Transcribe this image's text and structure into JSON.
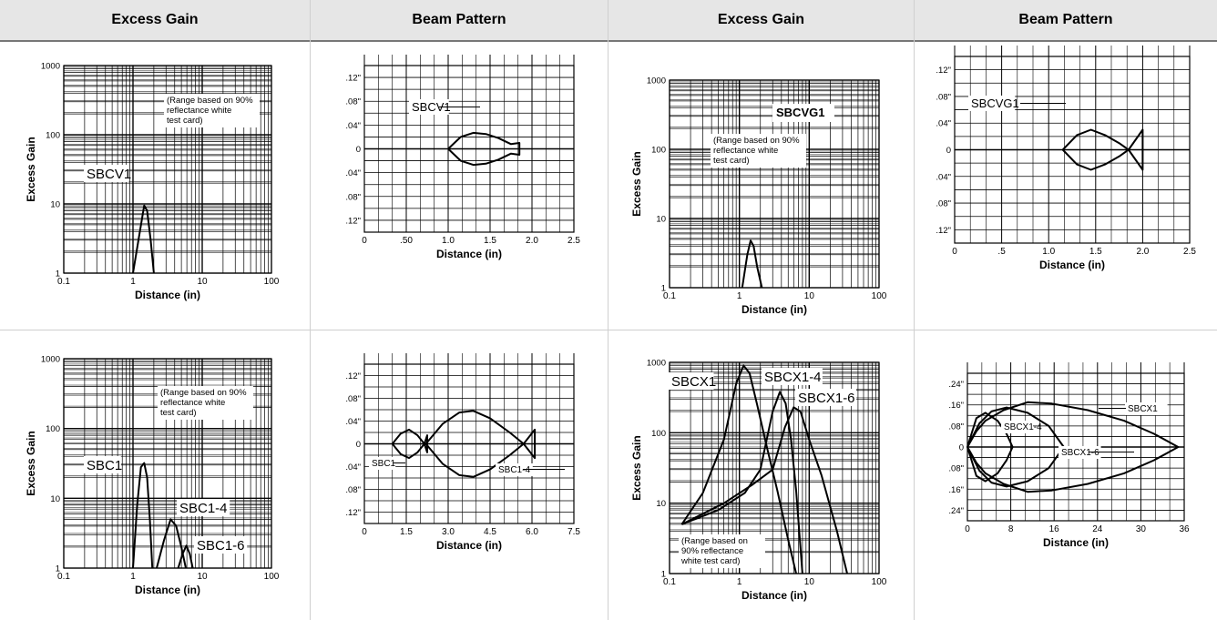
{
  "headers": [
    "Excess Gain",
    "Beam Pattern",
    "Excess Gain",
    "Beam Pattern"
  ],
  "chart_data": [
    {
      "id": "eg-sbcv1",
      "type": "line",
      "xscale": "log",
      "yscale": "log",
      "xlim": [
        0.1,
        100
      ],
      "ylim": [
        1,
        1000
      ],
      "xticks": [
        "0.1",
        "1",
        "10",
        "100"
      ],
      "yticks": [
        "1",
        "10",
        "100",
        "1000"
      ],
      "xlabel": "Distance (in)",
      "ylabel": "Excess Gain",
      "grid": true,
      "note": [
        "(Range based on 90%",
        "reflectance white",
        "test card)"
      ],
      "series": [
        {
          "name": "SBCV1",
          "x": [
            1.0,
            1.2,
            1.45,
            1.6,
            1.8,
            2.0
          ],
          "y": [
            1,
            3,
            9.5,
            8,
            3,
            1
          ]
        }
      ]
    },
    {
      "id": "bp-sbcv1",
      "type": "line",
      "xlim": [
        0,
        2.5
      ],
      "ylim": [
        -0.14,
        0.14
      ],
      "xticks": [
        "0",
        ".50",
        "1.0",
        "1.5",
        "2.0",
        "2.5"
      ],
      "yticks": [
        ".12\"",
        ".08\"",
        ".04\"",
        "0",
        ".04\"",
        ".08\"",
        ".12\""
      ],
      "xlabel": "Distance (in)",
      "grid": true,
      "series": [
        {
          "name": "SBCV1",
          "x": [
            1.0,
            1.15,
            1.3,
            1.45,
            1.6,
            1.75,
            1.85,
            1.85,
            1.75,
            1.6,
            1.45,
            1.3,
            1.15,
            1.0
          ],
          "y": [
            0,
            0.02,
            0.027,
            0.025,
            0.018,
            0.008,
            0.01,
            -0.01,
            -0.008,
            -0.018,
            -0.025,
            -0.027,
            -0.02,
            0
          ]
        }
      ]
    },
    {
      "id": "eg-sbcvg1",
      "type": "line",
      "xscale": "log",
      "yscale": "log",
      "xlim": [
        0.1,
        100
      ],
      "ylim": [
        1,
        1000
      ],
      "xticks": [
        "0.1",
        "1",
        "10",
        "100"
      ],
      "yticks": [
        "1",
        "10",
        "100",
        "1000"
      ],
      "xlabel": "Distance (in)",
      "ylabel": "Excess Gain",
      "grid": true,
      "title": "SBCVG1",
      "note": [
        "(Range based on 90%",
        "reflectance white",
        "test card)"
      ],
      "series": [
        {
          "name": "SBCVG1",
          "x": [
            1.1,
            1.3,
            1.45,
            1.6,
            1.8,
            2.1
          ],
          "y": [
            1,
            3,
            4.8,
            4,
            2,
            1
          ]
        }
      ]
    },
    {
      "id": "bp-sbcvg1",
      "type": "line",
      "xlim": [
        0,
        2.5
      ],
      "ylim": [
        -0.14,
        0.14
      ],
      "xticks": [
        "0",
        ".5",
        "1.0",
        "1.5",
        "2.0",
        "2.5"
      ],
      "yticks": [
        ".12\"",
        ".08\"",
        ".04\"",
        "0",
        ".04\"",
        ".08\"",
        ".12\""
      ],
      "xlabel": "Distance (in)",
      "grid": true,
      "series": [
        {
          "name": "SBCVG1",
          "x": [
            1.15,
            1.3,
            1.45,
            1.6,
            1.75,
            1.85,
            2.0,
            2.0,
            1.85,
            1.75,
            1.6,
            1.45,
            1.3,
            1.15
          ],
          "y": [
            0,
            0.022,
            0.03,
            0.022,
            0.01,
            0,
            0.03,
            -0.03,
            0,
            -0.01,
            -0.022,
            -0.03,
            -0.022,
            0
          ]
        }
      ]
    },
    {
      "id": "eg-sbc1",
      "type": "line",
      "xscale": "log",
      "yscale": "log",
      "xlim": [
        0.1,
        100
      ],
      "ylim": [
        1,
        1000
      ],
      "xticks": [
        "0.1",
        "1",
        "10",
        "100"
      ],
      "yticks": [
        "1",
        "10",
        "100",
        "1000"
      ],
      "xlabel": "Distance (in)",
      "ylabel": "Excess Gain",
      "grid": true,
      "note": [
        "(Range based on 90%",
        "reflectance white",
        "test card)"
      ],
      "series": [
        {
          "name": "SBC1",
          "x": [
            1.0,
            1.15,
            1.3,
            1.45,
            1.6,
            1.75,
            1.9
          ],
          "y": [
            1,
            8,
            28,
            32,
            20,
            5,
            1
          ]
        },
        {
          "name": "SBC1-4",
          "x": [
            2.2,
            2.8,
            3.5,
            4.2,
            5.0,
            5.8
          ],
          "y": [
            1,
            2.5,
            5,
            4,
            2,
            1
          ]
        },
        {
          "name": "SBC1-6",
          "x": [
            4.5,
            5.2,
            5.9,
            6.6,
            7.3
          ],
          "y": [
            1,
            1.6,
            2.1,
            1.6,
            1
          ]
        }
      ]
    },
    {
      "id": "bp-sbc1",
      "type": "line",
      "xlim": [
        0,
        7.5
      ],
      "ylim": [
        -0.14,
        0.14
      ],
      "xticks": [
        "0",
        "1.5",
        "3.0",
        "4.5",
        "6.0",
        "7.5"
      ],
      "yticks": [
        ".12\"",
        ".08\"",
        ".04\"",
        "0",
        ".04\"",
        ".08\"",
        ".12\""
      ],
      "xlabel": "Distance (in)",
      "grid": true,
      "series": [
        {
          "name": "SBC1",
          "x": [
            1.0,
            1.3,
            1.6,
            1.9,
            2.15,
            2.25,
            2.25,
            2.15,
            1.9,
            1.6,
            1.3,
            1.0
          ],
          "y": [
            0,
            0.018,
            0.025,
            0.015,
            0,
            0.015,
            -0.015,
            0,
            -0.015,
            -0.025,
            -0.018,
            0
          ]
        },
        {
          "name": "SBC1-4",
          "x": [
            2.2,
            2.8,
            3.4,
            3.9,
            4.5,
            5.2,
            5.7,
            6.1,
            6.1,
            5.7,
            5.2,
            4.5,
            3.9,
            3.4,
            2.8,
            2.2
          ],
          "y": [
            0,
            0.035,
            0.055,
            0.058,
            0.045,
            0.02,
            0,
            0.025,
            -0.025,
            0,
            -0.02,
            -0.045,
            -0.058,
            -0.055,
            -0.035,
            0
          ]
        }
      ]
    },
    {
      "id": "eg-sbcx1",
      "type": "line",
      "xscale": "log",
      "yscale": "log",
      "xlim": [
        0.1,
        100
      ],
      "ylim": [
        1,
        1000
      ],
      "xticks": [
        "0.1",
        "1",
        "10",
        "100"
      ],
      "yticks": [
        "1",
        "10",
        "100",
        "1000"
      ],
      "xlabel": "Distance (in)",
      "ylabel": "Excess Gain",
      "grid": true,
      "note": [
        "(Range based on",
        "90% reflectance",
        "white test card)"
      ],
      "series": [
        {
          "name": "SBCX1",
          "x": [
            0.15,
            0.3,
            0.6,
            0.9,
            1.15,
            1.4,
            1.8,
            2.5,
            3.5,
            5.0,
            6.5
          ],
          "y": [
            5,
            14,
            80,
            500,
            900,
            700,
            250,
            60,
            15,
            3,
            1
          ]
        },
        {
          "name": "SBCX1-4",
          "x": [
            0.15,
            0.5,
            1.2,
            2.0,
            3.0,
            3.8,
            4.6,
            5.5,
            6.5,
            8.0
          ],
          "y": [
            5,
            8,
            14,
            30,
            200,
            380,
            260,
            80,
            15,
            1
          ]
        },
        {
          "name": "SBCX1-6",
          "x": [
            0.15,
            0.6,
            1.5,
            3.0,
            4.5,
            6.0,
            7.5,
            10,
            15,
            25,
            35
          ],
          "y": [
            5,
            10,
            18,
            30,
            120,
            230,
            200,
            80,
            25,
            4,
            1
          ]
        }
      ]
    },
    {
      "id": "bp-sbcx1",
      "type": "line",
      "xlim": [
        0,
        36
      ],
      "ylim": [
        -0.28,
        0.28
      ],
      "xticks": [
        "0",
        "8",
        "16",
        "24",
        "30",
        "36"
      ],
      "yticks": [
        ".24\"",
        ".16\"",
        ".08\"",
        "0",
        ".08\"",
        ".16\"",
        ".24\""
      ],
      "xlabel": "Distance (in)",
      "grid": true,
      "series": [
        {
          "name": "SBCX1",
          "x": [
            0,
            1.5,
            3,
            5,
            6.5,
            7.5,
            6.5,
            5,
            3,
            1.5,
            0
          ],
          "y": [
            0,
            0.11,
            0.13,
            0.1,
            0.05,
            0,
            -0.05,
            -0.1,
            -0.13,
            -0.11,
            0
          ]
        },
        {
          "name": "SBCX1-4",
          "x": [
            0,
            2,
            4,
            6.5,
            10,
            13.5,
            16,
            13.5,
            10,
            6.5,
            4,
            2,
            0
          ],
          "y": [
            0,
            0.09,
            0.135,
            0.15,
            0.13,
            0.08,
            0,
            -0.08,
            -0.13,
            -0.15,
            -0.135,
            -0.09,
            0
          ]
        },
        {
          "name": "SBCX1-6",
          "x": [
            0,
            1.5,
            3,
            6,
            10,
            14,
            20,
            26,
            31,
            35,
            31,
            26,
            20,
            14,
            10,
            6,
            3,
            1.5,
            0
          ],
          "y": [
            0,
            0.06,
            0.1,
            0.14,
            0.17,
            0.165,
            0.14,
            0.1,
            0.05,
            0,
            -0.05,
            -0.1,
            -0.14,
            -0.165,
            -0.17,
            -0.14,
            -0.1,
            -0.06,
            0
          ]
        }
      ]
    }
  ]
}
